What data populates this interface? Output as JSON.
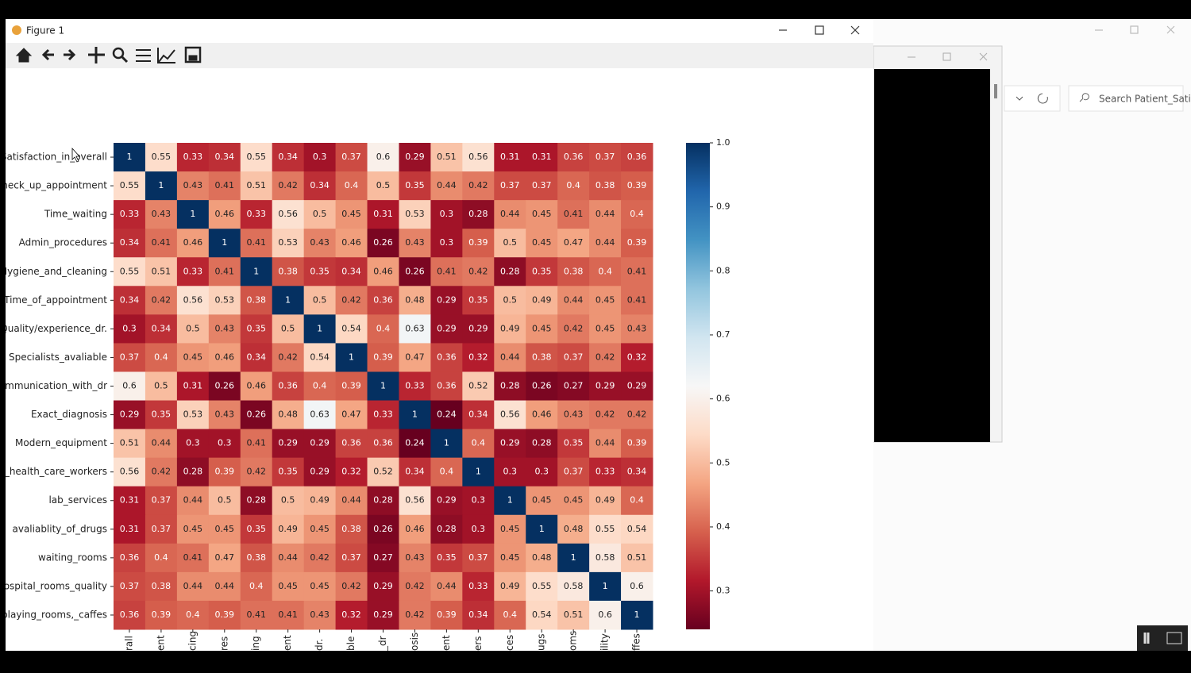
{
  "window": {
    "title": "Figure 1"
  },
  "background_window": {
    "search_placeholder": "Search Patient_Sati..."
  },
  "chart_data": {
    "type": "heatmap",
    "x_categories": [
      "rall",
      "ent",
      "cing",
      "res",
      "ing",
      "ent",
      "dr.",
      "ble",
      "_dr",
      "osis",
      "ent",
      "ers",
      "ces",
      "ugs",
      "oms",
      "ility",
      "ffes"
    ],
    "y_categories": [
      "Satisfaction_in_overall",
      "Check_up_appointment",
      "Time_waiting",
      "Admin_procedures",
      "Hygiene_and_cleaning",
      "Time_of_appointment",
      "Quality/experience_dr.",
      "Specialists_avaliable",
      "Communication_with_dr",
      "Exact_diagnosis",
      "Modern_equipment",
      "lly_health_care_workers",
      "lab_services",
      "avaliablity_of_drugs",
      "waiting_rooms",
      "hospital_rooms_quality",
      "_playing_rooms,_caffes"
    ],
    "values": [
      [
        1,
        0.55,
        0.33,
        0.34,
        0.55,
        0.34,
        0.3,
        0.37,
        0.6,
        0.29,
        0.51,
        0.56,
        0.31,
        0.31,
        0.36,
        0.37,
        0.36
      ],
      [
        0.55,
        1,
        0.43,
        0.41,
        0.51,
        0.42,
        0.34,
        0.4,
        0.5,
        0.35,
        0.44,
        0.42,
        0.37,
        0.37,
        0.4,
        0.38,
        0.39
      ],
      [
        0.33,
        0.43,
        1,
        0.46,
        0.33,
        0.56,
        0.5,
        0.45,
        0.31,
        0.53,
        0.3,
        0.28,
        0.44,
        0.45,
        0.41,
        0.44,
        0.4
      ],
      [
        0.34,
        0.41,
        0.46,
        1,
        0.41,
        0.53,
        0.43,
        0.46,
        0.26,
        0.43,
        0.3,
        0.39,
        0.5,
        0.45,
        0.47,
        0.44,
        0.39
      ],
      [
        0.55,
        0.51,
        0.33,
        0.41,
        1,
        0.38,
        0.35,
        0.34,
        0.46,
        0.26,
        0.41,
        0.42,
        0.28,
        0.35,
        0.38,
        0.4,
        0.41
      ],
      [
        0.34,
        0.42,
        0.56,
        0.53,
        0.38,
        1,
        0.5,
        0.42,
        0.36,
        0.48,
        0.29,
        0.35,
        0.5,
        0.49,
        0.44,
        0.45,
        0.41
      ],
      [
        0.3,
        0.34,
        0.5,
        0.43,
        0.35,
        0.5,
        1,
        0.54,
        0.4,
        0.63,
        0.29,
        0.29,
        0.49,
        0.45,
        0.42,
        0.45,
        0.43
      ],
      [
        0.37,
        0.4,
        0.45,
        0.46,
        0.34,
        0.42,
        0.54,
        1,
        0.39,
        0.47,
        0.36,
        0.32,
        0.44,
        0.38,
        0.37,
        0.42,
        0.32
      ],
      [
        0.6,
        0.5,
        0.31,
        0.26,
        0.46,
        0.36,
        0.4,
        0.39,
        1,
        0.33,
        0.36,
        0.52,
        0.28,
        0.26,
        0.27,
        0.29,
        0.29
      ],
      [
        0.29,
        0.35,
        0.53,
        0.43,
        0.26,
        0.48,
        0.63,
        0.47,
        0.33,
        1,
        0.24,
        0.34,
        0.56,
        0.46,
        0.43,
        0.42,
        0.42
      ],
      [
        0.51,
        0.44,
        0.3,
        0.3,
        0.41,
        0.29,
        0.29,
        0.36,
        0.36,
        0.24,
        1,
        0.4,
        0.29,
        0.28,
        0.35,
        0.44,
        0.39
      ],
      [
        0.56,
        0.42,
        0.28,
        0.39,
        0.42,
        0.35,
        0.29,
        0.32,
        0.52,
        0.34,
        0.4,
        1,
        0.3,
        0.3,
        0.37,
        0.33,
        0.34
      ],
      [
        0.31,
        0.37,
        0.44,
        0.5,
        0.28,
        0.5,
        0.49,
        0.44,
        0.28,
        0.56,
        0.29,
        0.3,
        1,
        0.45,
        0.45,
        0.49,
        0.4
      ],
      [
        0.31,
        0.37,
        0.45,
        0.45,
        0.35,
        0.49,
        0.45,
        0.38,
        0.26,
        0.46,
        0.28,
        0.3,
        0.45,
        1,
        0.48,
        0.55,
        0.54
      ],
      [
        0.36,
        0.4,
        0.41,
        0.47,
        0.38,
        0.44,
        0.42,
        0.37,
        0.27,
        0.43,
        0.35,
        0.37,
        0.45,
        0.48,
        1,
        0.58,
        0.51
      ],
      [
        0.37,
        0.38,
        0.44,
        0.44,
        0.4,
        0.45,
        0.45,
        0.42,
        0.29,
        0.42,
        0.44,
        0.33,
        0.49,
        0.55,
        0.58,
        1,
        0.6
      ],
      [
        0.36,
        0.39,
        0.4,
        0.39,
        0.41,
        0.41,
        0.43,
        0.32,
        0.29,
        0.42,
        0.39,
        0.34,
        0.4,
        0.54,
        0.51,
        0.6,
        1
      ]
    ],
    "clim": [
      0.24,
      1
    ],
    "cticks": [
      0.3,
      0.4,
      0.5,
      0.6,
      0.7,
      0.8,
      0.9,
      {
        "value": 1,
        "label": "1.0"
      }
    ],
    "colormap": [
      "#67001f",
      "#b2182b",
      "#d6604d",
      "#f4a582",
      "#fddbc7",
      "#f7f7f7",
      "#d1e5f0",
      "#92c5de",
      "#4393c3",
      "#2166ac",
      "#053061"
    ]
  }
}
